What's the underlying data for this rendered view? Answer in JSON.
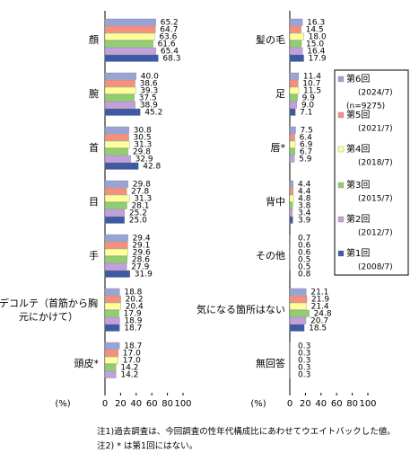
{
  "chart_data": [
    {
      "type": "bar",
      "orientation": "horizontal",
      "x_unit": "(%)",
      "categories": [
        "顔",
        "腕",
        "首",
        "目",
        "手",
        "デコルテ（首筋から胸元にかけて）",
        "頭皮*"
      ],
      "xlim": [
        0,
        100
      ],
      "xticks": [
        0,
        20,
        40,
        60,
        80,
        100
      ],
      "series": [
        {
          "color": "#9aa3d6",
          "values": [
            65.2,
            40,
            30.8,
            29.8,
            29.4,
            18.8,
            18.7
          ],
          "value_labels": [
            "65.2",
            "40.0",
            "30.8",
            "29.8",
            "29.4",
            "18.8",
            "18.7"
          ]
        },
        {
          "color": "#f5907f",
          "values": [
            64.7,
            38.6,
            30.5,
            27.8,
            29.1,
            20.2,
            17
          ],
          "value_labels": [
            "64.7",
            "38.6",
            "30.5",
            "27.8",
            "29.1",
            "20.2",
            "17.0"
          ]
        },
        {
          "color": "#ffff99",
          "values": [
            63.6,
            39.3,
            31.3,
            31.3,
            29.6,
            20.4,
            17
          ],
          "value_labels": [
            "63.6",
            "39.3",
            "31.3",
            "31.3",
            "29.6",
            "20.4",
            "17.0"
          ]
        },
        {
          "color": "#8fcf6f",
          "values": [
            61.6,
            37.5,
            29.8,
            28.1,
            28.6,
            17.9,
            14.2
          ],
          "value_labels": [
            "61.6",
            "37.5",
            "29.8",
            "28.1",
            "28.6",
            "17.9",
            "14.2"
          ]
        },
        {
          "color": "#c3a0db",
          "values": [
            65.4,
            38.9,
            32.9,
            25.2,
            27.9,
            18.9,
            14.2
          ],
          "value_labels": [
            "65.4",
            "38.9",
            "32.9",
            "25.2",
            "27.9",
            "18.9",
            "14.2"
          ]
        },
        {
          "color": "#3e5aa6",
          "values": [
            68.3,
            45.2,
            42.8,
            25,
            31.9,
            18.7,
            null
          ],
          "value_labels": [
            "68.3",
            "45.2",
            "42.8",
            "25.0",
            "31.9",
            "18.7",
            null
          ]
        }
      ]
    },
    {
      "type": "bar",
      "orientation": "horizontal",
      "x_unit": "(%)",
      "legend": "right",
      "categories": [
        "髪の毛",
        "足",
        "唇*",
        "背中",
        "その他",
        "気になる箇所はない",
        "無回答"
      ],
      "xlim": [
        0,
        100
      ],
      "xticks": [
        0,
        20,
        40,
        60,
        80,
        100
      ],
      "series": [
        {
          "name": "第6回",
          "period": "(2024/7)",
          "sample": "(n=9275)",
          "color": "#9aa3d6",
          "values": [
            16.3,
            11.4,
            7.5,
            4.4,
            0.7,
            21.1,
            0.3
          ],
          "value_labels": [
            "16.3",
            "11.4",
            "7.5",
            "4.4",
            "0.7",
            "21.1",
            "0.3"
          ]
        },
        {
          "name": "第5回",
          "period": "(2021/7)",
          "color": "#f5907f",
          "values": [
            14.5,
            10.7,
            6.4,
            4.4,
            0.6,
            21.9,
            0.3
          ],
          "value_labels": [
            "14.5",
            "10.7",
            "6.4",
            "4.4",
            "0.6",
            "21.9",
            "0.3"
          ]
        },
        {
          "name": "第4回",
          "period": "(2018/7)",
          "color": "#ffff99",
          "values": [
            18,
            11.5,
            6.9,
            4.8,
            0.6,
            21.4,
            0.3
          ],
          "value_labels": [
            "18.0",
            "11.5",
            "6.9",
            "4.8",
            "0.6",
            "21.4",
            "0.3"
          ]
        },
        {
          "name": "第3回",
          "period": "(2015/7)",
          "color": "#8fcf6f",
          "values": [
            15,
            9.9,
            6.7,
            3.8,
            0.5,
            24.8,
            0.3
          ],
          "value_labels": [
            "15.0",
            "9.9",
            "6.7",
            "3.8",
            "0.5",
            "24.8",
            "0.3"
          ]
        },
        {
          "name": "第2回",
          "period": "(2012/7)",
          "color": "#c3a0db",
          "values": [
            16.4,
            9,
            5.9,
            3.4,
            0.5,
            20.7,
            0.3
          ],
          "value_labels": [
            "16.4",
            "9.0",
            "5.9",
            "3.4",
            "0.5",
            "20.7",
            "0.3"
          ]
        },
        {
          "name": "第1回",
          "period": "(2008/7)",
          "color": "#3e5aa6",
          "values": [
            17.9,
            7.1,
            null,
            3.9,
            0.8,
            18.5,
            null
          ],
          "value_labels": [
            "17.9",
            "7.1",
            null,
            "3.9",
            "0.8",
            "18.5",
            null
          ]
        }
      ]
    }
  ],
  "notes": [
    "注1)過去調査は、今回調査の性年代構成比にあわせてウエイトバックした値。",
    "注2) * は第1回にはない。"
  ]
}
